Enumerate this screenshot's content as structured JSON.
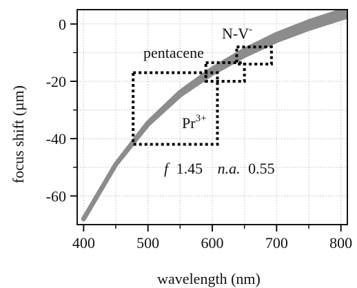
{
  "chart_data": {
    "type": "area",
    "xlabel": "wavelength (nm)",
    "ylabel": "focus shift (µm)",
    "xlim": [
      390,
      810
    ],
    "ylim": [
      -70,
      5
    ],
    "x_ticks": [
      400,
      500,
      600,
      700,
      800
    ],
    "y_ticks": [
      0,
      -20,
      -40,
      -60
    ],
    "x_ticks_minor": [
      450,
      550,
      650,
      750
    ],
    "y_ticks_minor": [
      -10,
      -30,
      -50
    ],
    "grid": true,
    "band_color": "#8c8c8c",
    "box_color": "#000000",
    "band": {
      "x": [
        400,
        450,
        500,
        550,
        600,
        650,
        700,
        750,
        800,
        810
      ],
      "y_upper": [
        -68,
        -49,
        -34.5,
        -23.8,
        -15.7,
        -9.1,
        -3.6,
        0.8,
        4.5,
        5.2
      ],
      "y_lower": [
        -68,
        -49,
        -35,
        -24.8,
        -17.2,
        -11.0,
        -5.8,
        -1.6,
        2.0,
        2.6
      ]
    },
    "boxes": [
      {
        "name": "pr3",
        "x": [
          477,
          608
        ],
        "y": [
          -42,
          -17
        ]
      },
      {
        "name": "pentacene",
        "x": [
          590,
          650
        ],
        "y": [
          -20,
          -13.5
        ]
      },
      {
        "name": "nv",
        "x": [
          638,
          692
        ],
        "y": [
          -14,
          -8
        ]
      }
    ],
    "annotations": {
      "nv_main": "N-V",
      "nv_sup": "-",
      "pentacene": "pentacene",
      "pr_main": "Pr",
      "pr_sup": "3+",
      "f_symbol": "f",
      "f_value": "1.45",
      "na_symbol": "n.a.",
      "na_value": "0.55"
    }
  }
}
